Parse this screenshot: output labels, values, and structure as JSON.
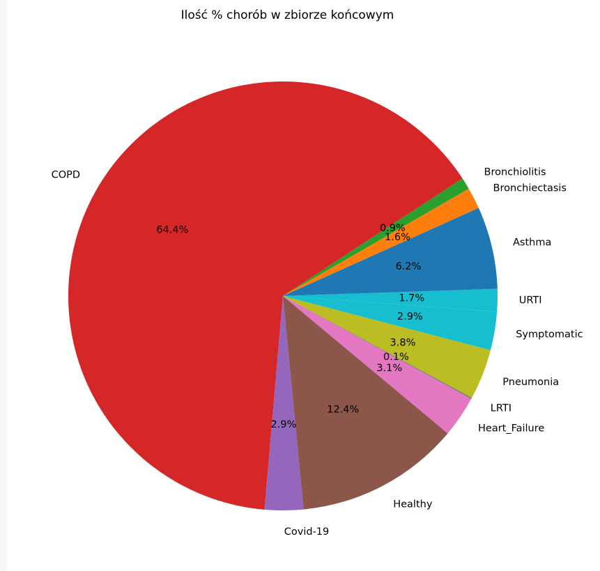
{
  "chart_data": {
    "type": "pie",
    "title": "Ilość % chorób w zbiorze końcowym",
    "start_angle_deg": 30,
    "direction": "counterclockwise",
    "slices": [
      {
        "label": "Bronchiolitis",
        "value": 0.9,
        "pct_label": "0.9%",
        "color": "#2ca02c"
      },
      {
        "label": "COPD",
        "value": 64.4,
        "pct_label": "64.4%",
        "color": "#d62728"
      },
      {
        "label": "Covid-19",
        "value": 2.9,
        "pct_label": "2.9%",
        "color": "#9467bd"
      },
      {
        "label": "Healthy",
        "value": 12.4,
        "pct_label": "12.4%",
        "color": "#8c564b"
      },
      {
        "label": "Heart_Failure",
        "value": 3.1,
        "pct_label": "3.1%",
        "color": "#e377c2"
      },
      {
        "label": "LRTI",
        "value": 0.1,
        "pct_label": "0.1%",
        "color": "#7f7f7f"
      },
      {
        "label": "Pneumonia",
        "value": 3.8,
        "pct_label": "3.8%",
        "color": "#bcbd22"
      },
      {
        "label": "Symptomatic",
        "value": 2.9,
        "pct_label": "2.9%",
        "color": "#17becf"
      },
      {
        "label": "URTI",
        "value": 1.7,
        "pct_label": "1.7%",
        "color": "#17becf"
      },
      {
        "label": "Asthma",
        "value": 6.2,
        "pct_label": "6.2%",
        "color": "#1f77b4"
      },
      {
        "label": "Bronchiectasis",
        "value": 1.6,
        "pct_label": "1.6%",
        "color": "#ff7f0e"
      }
    ]
  }
}
